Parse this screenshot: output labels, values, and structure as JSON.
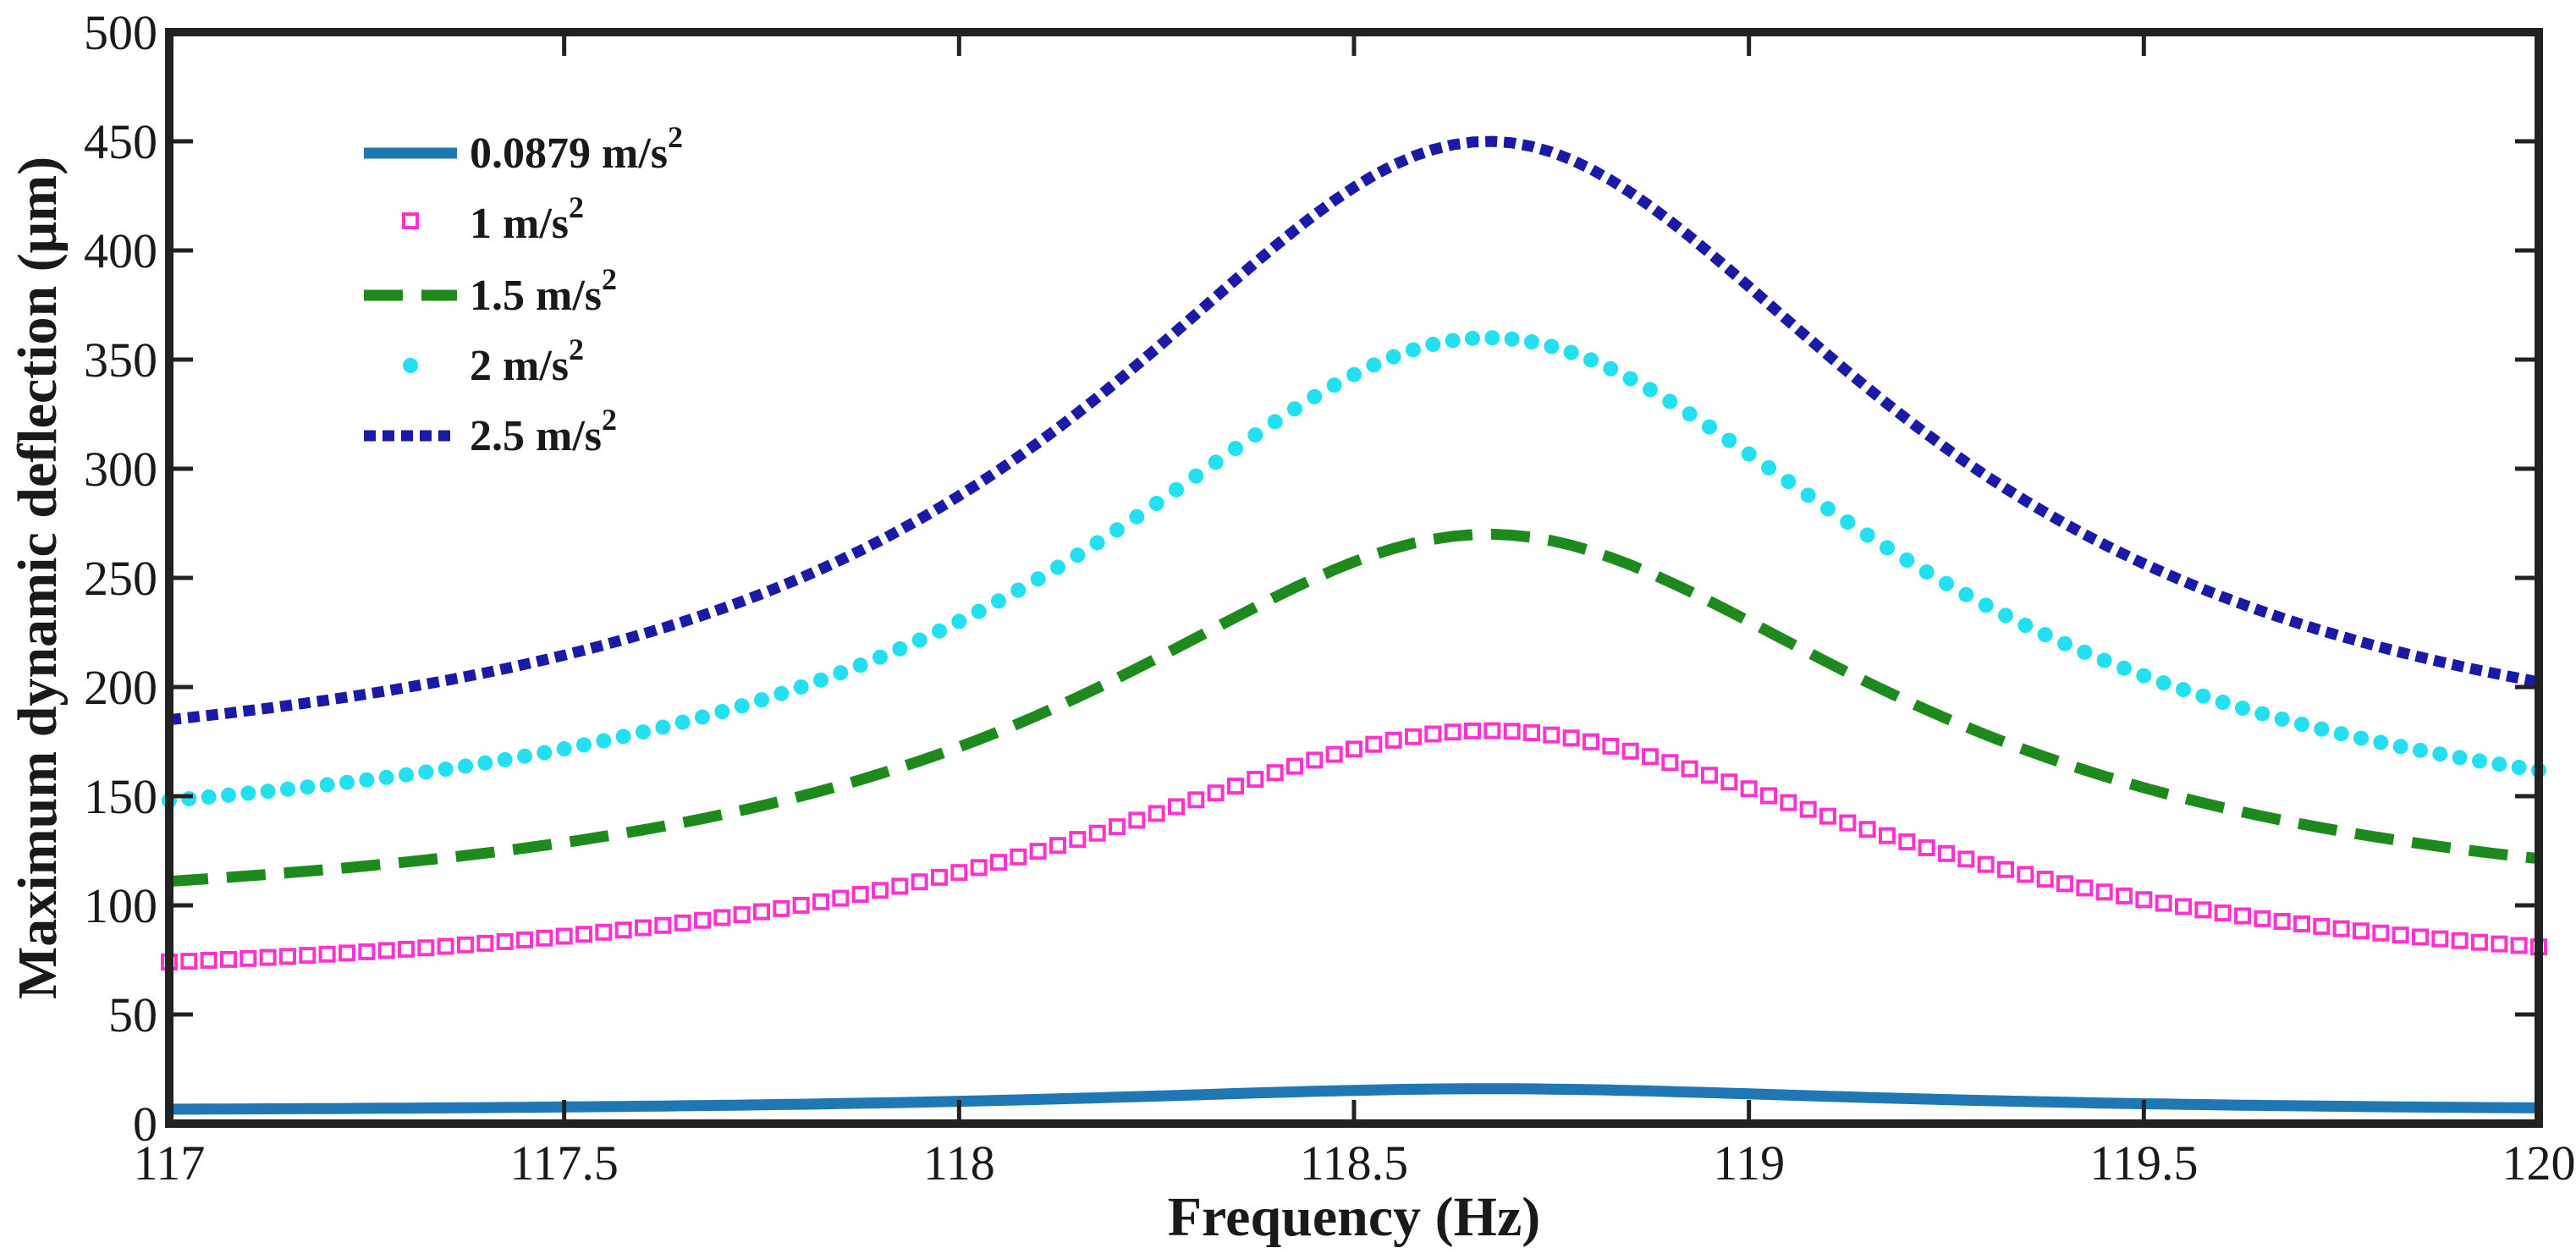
{
  "chart_data": {
    "type": "line",
    "title": "",
    "xlabel": "Frequency (Hz)",
    "ylabel": "Maximum dynamic deflection (μm)",
    "xlim": [
      117,
      120
    ],
    "ylim": [
      0,
      500
    ],
    "xticks": [
      117,
      117.5,
      118,
      118.5,
      119,
      119.5,
      120
    ],
    "xtick_labels": [
      "117",
      "117.5",
      "118",
      "118.5",
      "119",
      "119.5",
      "120"
    ],
    "yticks": [
      0,
      50,
      100,
      150,
      200,
      250,
      300,
      350,
      400,
      450,
      500
    ],
    "ytick_labels": [
      "0",
      "50",
      "100",
      "150",
      "200",
      "250",
      "300",
      "350",
      "400",
      "450",
      "500"
    ],
    "grid": false,
    "legend_position": "top-left",
    "resonance": {
      "peak_frequency": 118.67,
      "half_width": 0.62,
      "floor_ratio": 0.33
    },
    "x_step": 0.025,
    "series": [
      {
        "name": "0.0879 m/s",
        "superscript": "2",
        "peak": 16,
        "style": "solid",
        "color": "#1f77b4"
      },
      {
        "name": "1 m/s",
        "superscript": "2",
        "peak": 180,
        "style": "square-markers",
        "color": "#ff33cc"
      },
      {
        "name": "1.5 m/s",
        "superscript": "2",
        "peak": 270,
        "style": "dashed",
        "color": "#1e8a1e"
      },
      {
        "name": "2 m/s",
        "superscript": "2",
        "peak": 360,
        "style": "circle-markers",
        "color": "#22e0f0"
      },
      {
        "name": "2.5 m/s",
        "superscript": "2",
        "peak": 450,
        "style": "dotted",
        "color": "#1a1aa6"
      }
    ]
  }
}
